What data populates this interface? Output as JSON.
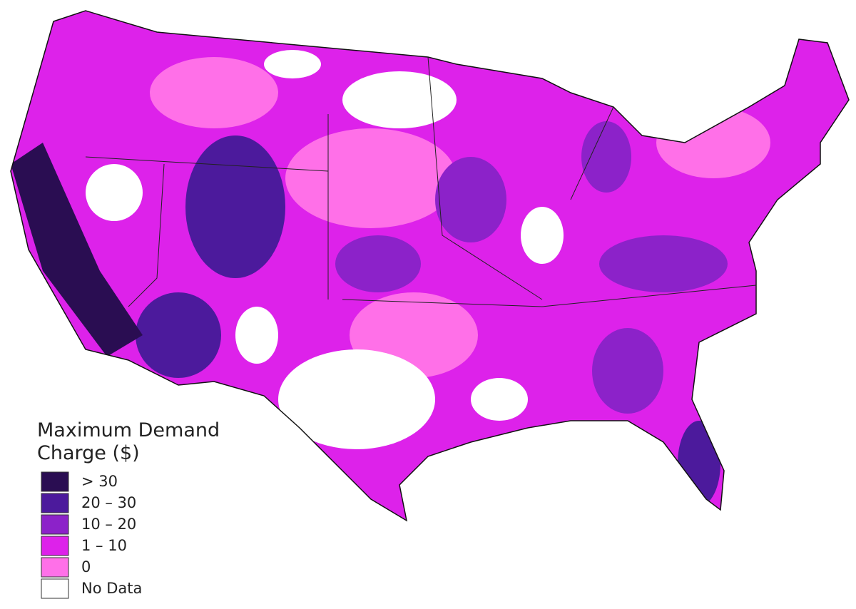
{
  "legend": {
    "title": "Maximum Demand Charge ($)",
    "items": [
      {
        "label": "> 30",
        "color": "#2a0d52"
      },
      {
        "label": "20 – 30",
        "color": "#4c1a9c"
      },
      {
        "label": "10 – 20",
        "color": "#8c22c9"
      },
      {
        "label": "1 – 10",
        "color": "#dd22ea"
      },
      {
        "label": "0",
        "color": "#ff70e8"
      },
      {
        "label": "No Data",
        "color": "#ffffff"
      }
    ]
  }
}
